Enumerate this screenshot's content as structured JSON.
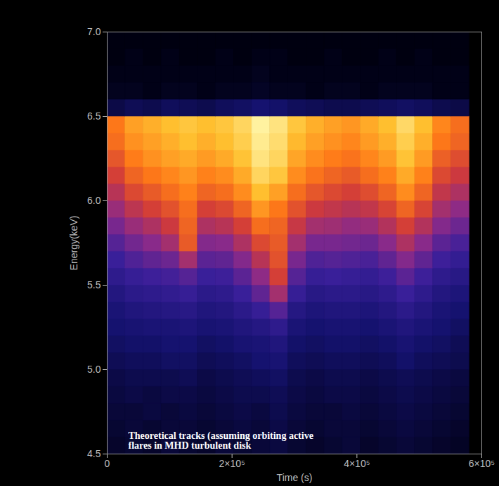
{
  "chart_data": {
    "type": "heatmap",
    "x_label": "Time (s)",
    "y_label": "Energy(keV)",
    "annotation": [
      "Theoretical tracks (assuming orbiting active",
      "flares in MHD turbulent disk"
    ],
    "xlim": [
      0,
      600000
    ],
    "ylim": [
      4.5,
      7.0
    ],
    "xticks": [
      0,
      {
        "value": 200000,
        "label": "2×10⁵"
      },
      {
        "value": 400000,
        "label": "4×10⁵"
      },
      {
        "value": 600000,
        "label": "6×10⁵"
      }
    ],
    "yticks": [
      4.5,
      {
        "value": 5,
        "label": "5.0"
      },
      5.5,
      {
        "value": 6,
        "label": "6.0"
      },
      6.5,
      {
        "value": 7,
        "label": "7.0"
      }
    ],
    "x_edges": [
      0,
      29000,
      58000,
      87000,
      116000,
      145000,
      174000,
      203000,
      232000,
      261000,
      290000,
      319000,
      348000,
      377000,
      406000,
      435000,
      464000,
      493000,
      522000,
      551000,
      580000
    ],
    "y_edges": [
      4.5,
      4.6,
      4.7,
      4.8,
      4.9,
      5.0,
      5.1,
      5.2,
      5.3,
      5.4,
      5.5,
      5.6,
      5.7,
      5.8,
      5.9,
      6.0,
      6.1,
      6.2,
      6.3,
      6.4,
      6.5,
      6.6,
      6.7,
      6.8,
      6.9,
      7.0
    ],
    "cells": [
      [
        0.08,
        0.09,
        0.08,
        0.1,
        0.09,
        0.08,
        0.1,
        0.09,
        0.1,
        0.11,
        0.09,
        0.08,
        0.09,
        0.1,
        0.08,
        0.09,
        0.1,
        0.09,
        0.08,
        0.07
      ],
      [
        0.09,
        0.1,
        0.09,
        0.1,
        0.1,
        0.09,
        0.1,
        0.11,
        0.1,
        0.12,
        0.1,
        0.09,
        0.1,
        0.1,
        0.09,
        0.1,
        0.11,
        0.1,
        0.09,
        0.08
      ],
      [
        0.1,
        0.1,
        0.11,
        0.1,
        0.11,
        0.1,
        0.11,
        0.12,
        0.11,
        0.13,
        0.11,
        0.1,
        0.1,
        0.11,
        0.1,
        0.11,
        0.12,
        0.11,
        0.1,
        0.09
      ],
      [
        0.11,
        0.12,
        0.11,
        0.12,
        0.12,
        0.11,
        0.12,
        0.13,
        0.13,
        0.14,
        0.12,
        0.11,
        0.12,
        0.12,
        0.11,
        0.12,
        0.13,
        0.12,
        0.11,
        0.1
      ],
      [
        0.12,
        0.13,
        0.13,
        0.13,
        0.14,
        0.12,
        0.13,
        0.14,
        0.15,
        0.16,
        0.13,
        0.12,
        0.13,
        0.13,
        0.12,
        0.13,
        0.14,
        0.13,
        0.12,
        0.11
      ],
      [
        0.14,
        0.15,
        0.15,
        0.16,
        0.16,
        0.14,
        0.15,
        0.16,
        0.18,
        0.19,
        0.15,
        0.14,
        0.15,
        0.15,
        0.14,
        0.15,
        0.17,
        0.15,
        0.14,
        0.13
      ],
      [
        0.16,
        0.17,
        0.17,
        0.18,
        0.18,
        0.16,
        0.17,
        0.19,
        0.2,
        0.22,
        0.17,
        0.16,
        0.17,
        0.17,
        0.16,
        0.17,
        0.19,
        0.17,
        0.16,
        0.14
      ],
      [
        0.18,
        0.19,
        0.2,
        0.2,
        0.21,
        0.19,
        0.2,
        0.22,
        0.24,
        0.27,
        0.2,
        0.18,
        0.19,
        0.19,
        0.18,
        0.2,
        0.22,
        0.2,
        0.18,
        0.16
      ],
      [
        0.2,
        0.22,
        0.23,
        0.24,
        0.25,
        0.22,
        0.23,
        0.26,
        0.3,
        0.36,
        0.24,
        0.21,
        0.22,
        0.22,
        0.21,
        0.23,
        0.26,
        0.23,
        0.2,
        0.18
      ],
      [
        0.23,
        0.26,
        0.27,
        0.28,
        0.3,
        0.26,
        0.27,
        0.31,
        0.38,
        0.5,
        0.3,
        0.25,
        0.26,
        0.26,
        0.25,
        0.27,
        0.31,
        0.27,
        0.23,
        0.21
      ],
      [
        0.27,
        0.3,
        0.32,
        0.33,
        0.36,
        0.31,
        0.32,
        0.37,
        0.46,
        0.6,
        0.36,
        0.3,
        0.31,
        0.3,
        0.29,
        0.32,
        0.37,
        0.32,
        0.27,
        0.25
      ],
      [
        0.31,
        0.35,
        0.38,
        0.4,
        0.5,
        0.37,
        0.38,
        0.44,
        0.54,
        0.64,
        0.42,
        0.35,
        0.36,
        0.35,
        0.34,
        0.38,
        0.44,
        0.38,
        0.32,
        0.29
      ],
      [
        0.36,
        0.41,
        0.45,
        0.5,
        0.66,
        0.44,
        0.45,
        0.52,
        0.62,
        0.66,
        0.5,
        0.42,
        0.42,
        0.41,
        0.4,
        0.45,
        0.52,
        0.45,
        0.37,
        0.34
      ],
      [
        0.42,
        0.48,
        0.52,
        0.58,
        0.68,
        0.52,
        0.54,
        0.6,
        0.7,
        0.68,
        0.57,
        0.5,
        0.49,
        0.47,
        0.48,
        0.53,
        0.6,
        0.53,
        0.44,
        0.4
      ],
      [
        0.48,
        0.55,
        0.6,
        0.64,
        0.7,
        0.6,
        0.62,
        0.68,
        0.78,
        0.72,
        0.64,
        0.58,
        0.56,
        0.54,
        0.56,
        0.61,
        0.68,
        0.61,
        0.5,
        0.46
      ],
      [
        0.54,
        0.62,
        0.66,
        0.7,
        0.74,
        0.68,
        0.7,
        0.76,
        0.86,
        0.8,
        0.7,
        0.65,
        0.62,
        0.6,
        0.63,
        0.68,
        0.76,
        0.68,
        0.56,
        0.52
      ],
      [
        0.6,
        0.68,
        0.72,
        0.75,
        0.78,
        0.74,
        0.76,
        0.82,
        0.92,
        0.88,
        0.76,
        0.71,
        0.68,
        0.66,
        0.7,
        0.74,
        0.82,
        0.74,
        0.62,
        0.58
      ],
      [
        0.65,
        0.73,
        0.77,
        0.8,
        0.82,
        0.79,
        0.82,
        0.87,
        0.96,
        0.92,
        0.81,
        0.76,
        0.73,
        0.71,
        0.75,
        0.79,
        0.87,
        0.79,
        0.67,
        0.63
      ],
      [
        0.7,
        0.77,
        0.8,
        0.83,
        0.86,
        0.83,
        0.86,
        0.9,
        0.98,
        0.94,
        0.85,
        0.8,
        0.77,
        0.75,
        0.79,
        0.83,
        0.9,
        0.83,
        0.72,
        0.68
      ],
      [
        0.72,
        0.8,
        0.83,
        0.86,
        0.88,
        0.86,
        0.88,
        0.92,
        1.0,
        0.96,
        0.88,
        0.83,
        0.8,
        0.78,
        0.82,
        0.86,
        0.93,
        0.86,
        0.75,
        0.7
      ],
      [
        0.12,
        0.14,
        0.13,
        0.15,
        0.14,
        0.13,
        0.15,
        0.16,
        0.18,
        0.17,
        0.15,
        0.14,
        0.13,
        0.13,
        0.14,
        0.15,
        0.16,
        0.15,
        0.13,
        0.12
      ],
      [
        0.06,
        0.06,
        0.05,
        0.06,
        0.06,
        0.05,
        0.06,
        0.06,
        0.07,
        0.06,
        0.06,
        0.05,
        0.06,
        0.06,
        0.05,
        0.06,
        0.06,
        0.06,
        0.05,
        0.05
      ],
      [
        0.05,
        0.05,
        0.05,
        0.05,
        0.05,
        0.05,
        0.05,
        0.05,
        0.06,
        0.05,
        0.05,
        0.05,
        0.05,
        0.05,
        0.05,
        0.05,
        0.05,
        0.05,
        0.05,
        0.05
      ],
      [
        0.04,
        0.05,
        0.04,
        0.05,
        0.04,
        0.04,
        0.05,
        0.04,
        0.05,
        0.05,
        0.04,
        0.04,
        0.05,
        0.04,
        0.04,
        0.05,
        0.04,
        0.05,
        0.04,
        0.04
      ],
      [
        0.04,
        0.04,
        0.04,
        0.04,
        0.04,
        0.04,
        0.04,
        0.04,
        0.04,
        0.04,
        0.04,
        0.04,
        0.04,
        0.04,
        0.04,
        0.04,
        0.04,
        0.04,
        0.04,
        0.04
      ]
    ]
  }
}
